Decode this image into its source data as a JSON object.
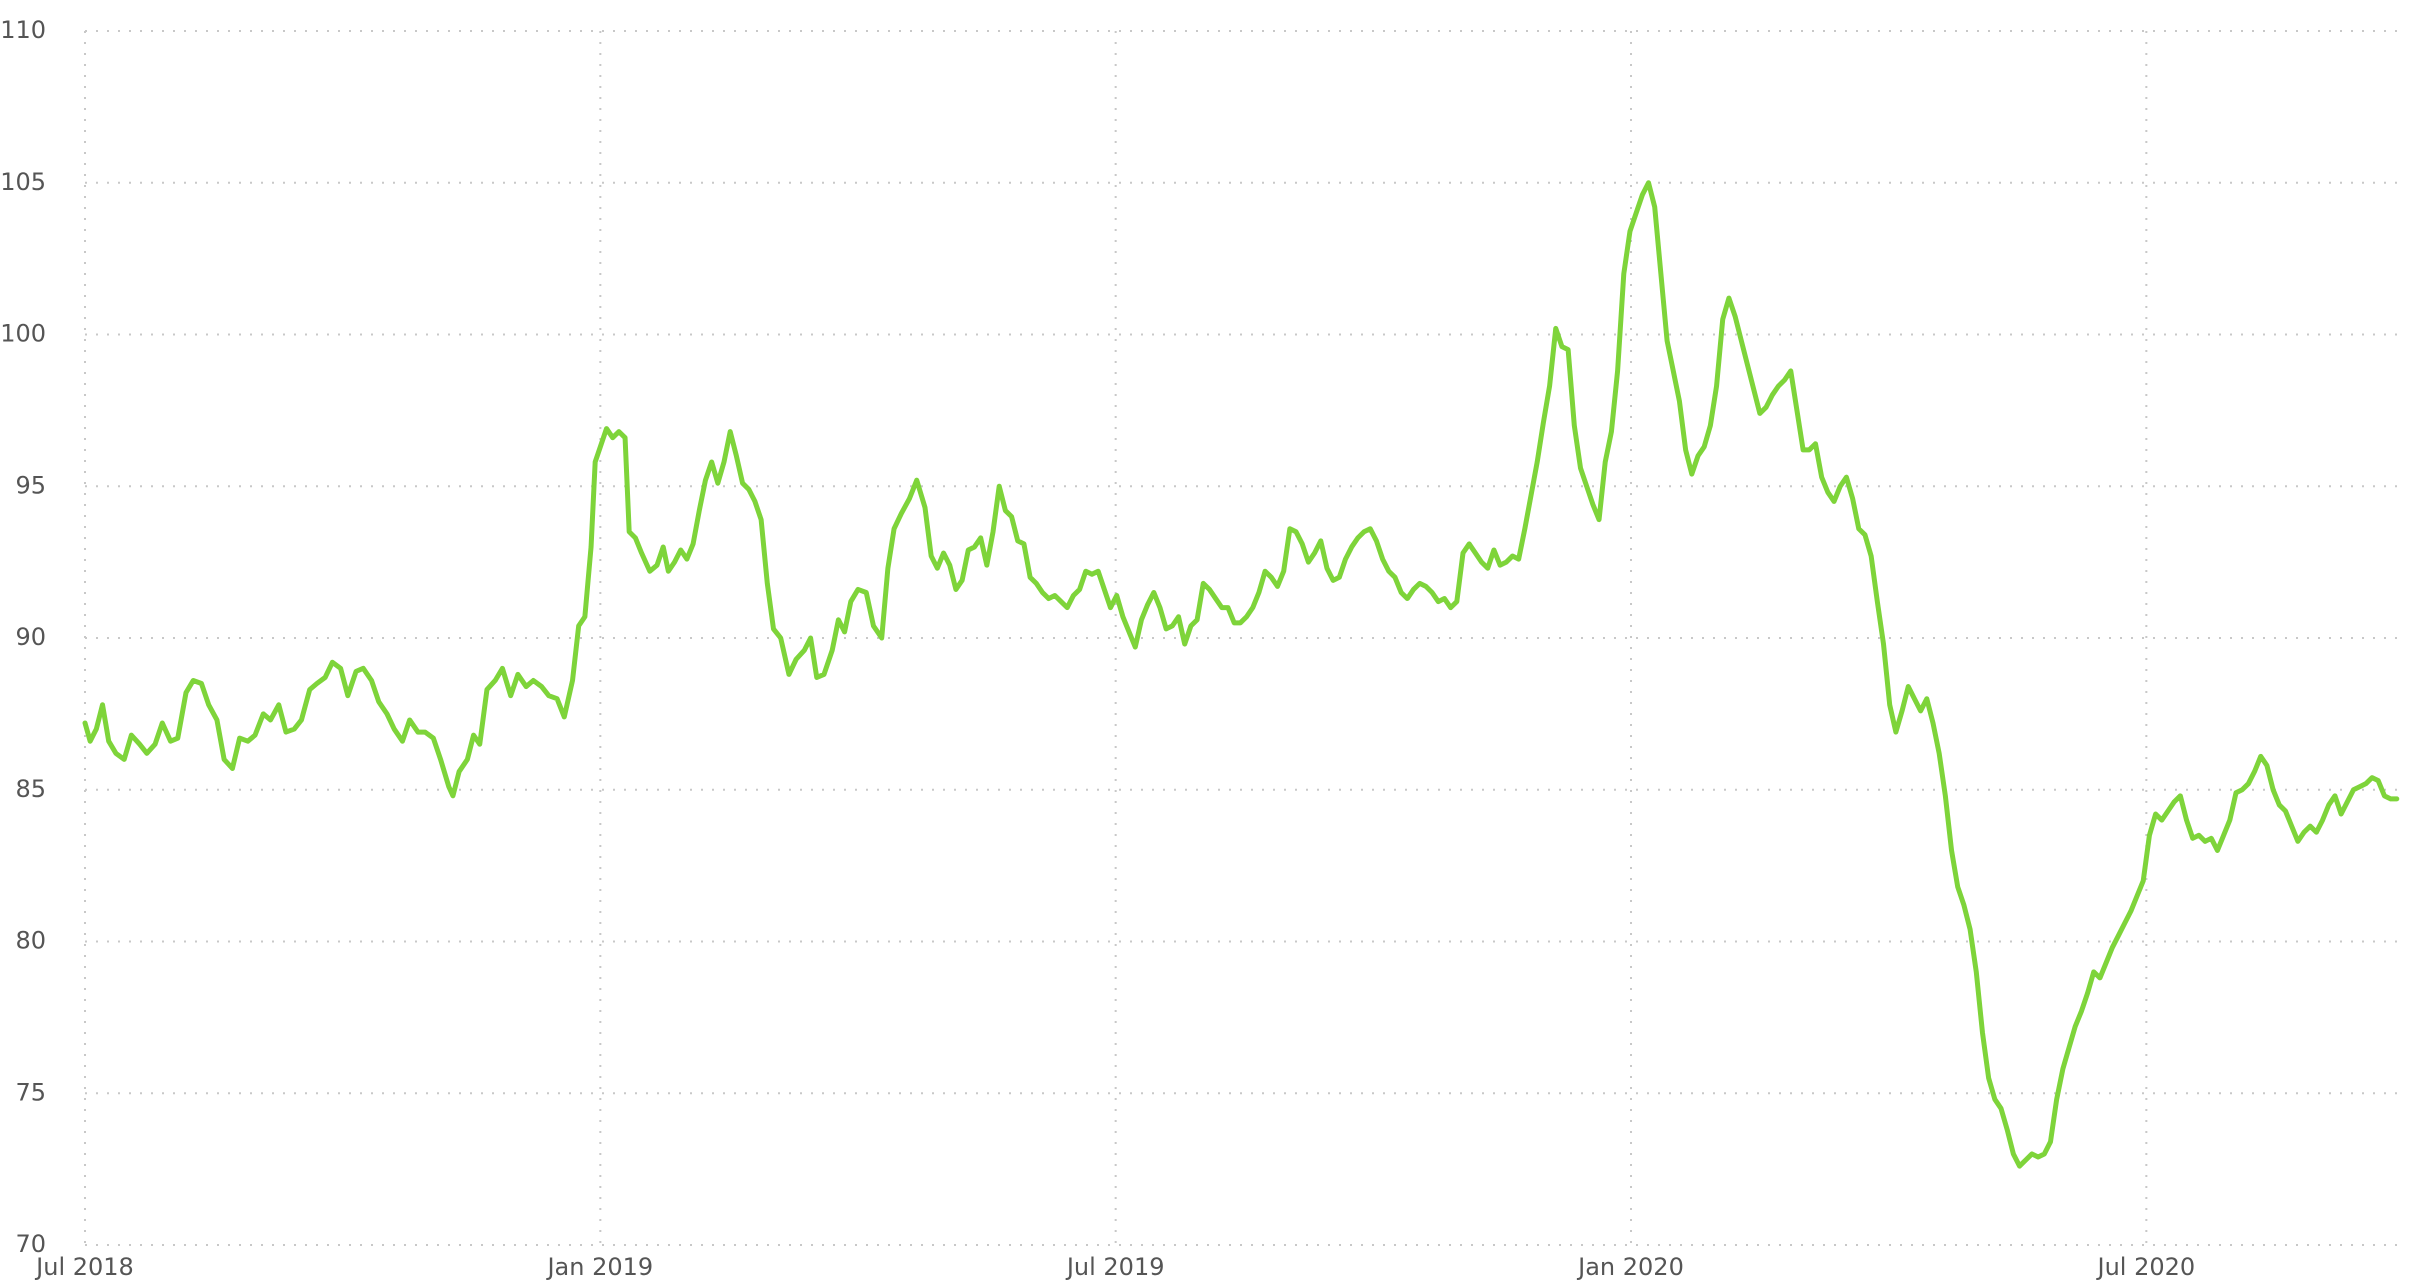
{
  "chart_data": {
    "type": "line",
    "x": [
      2018.5,
      2018.505,
      2018.511,
      2018.517,
      2018.523,
      2018.53,
      2018.538,
      2018.545,
      2018.553,
      2018.56,
      2018.568,
      2018.575,
      2018.583,
      2018.59,
      2018.598,
      2018.605,
      2018.613,
      2018.62,
      2018.628,
      2018.635,
      2018.643,
      2018.65,
      2018.658,
      2018.665,
      2018.673,
      2018.68,
      2018.688,
      2018.695,
      2018.703,
      2018.71,
      2018.718,
      2018.725,
      2018.733,
      2018.74,
      2018.748,
      2018.755,
      2018.763,
      2018.77,
      2018.778,
      2018.785,
      2018.793,
      2018.8,
      2018.808,
      2018.815,
      2018.823,
      2018.83,
      2018.838,
      2018.845,
      2018.853,
      2018.857,
      2018.863,
      2018.871,
      2018.877,
      2018.883,
      2018.89,
      2018.898,
      2018.905,
      2018.913,
      2018.92,
      2018.928,
      2018.935,
      2018.943,
      2018.95,
      2018.958,
      2018.965,
      2018.973,
      2018.979,
      2018.985,
      2018.991,
      2018.995,
      2019.0,
      2019.006,
      2019.012,
      2019.018,
      2019.024,
      2019.028,
      2019.034,
      2019.04,
      2019.048,
      2019.055,
      2019.061,
      2019.066,
      2019.072,
      2019.078,
      2019.084,
      2019.09,
      2019.096,
      2019.102,
      2019.108,
      2019.114,
      2019.12,
      2019.126,
      2019.132,
      2019.138,
      2019.144,
      2019.15,
      2019.156,
      2019.162,
      2019.168,
      2019.175,
      2019.183,
      2019.19,
      2019.198,
      2019.204,
      2019.21,
      2019.217,
      2019.225,
      2019.231,
      2019.237,
      2019.243,
      2019.25,
      2019.258,
      2019.265,
      2019.273,
      2019.279,
      2019.285,
      2019.292,
      2019.3,
      2019.307,
      2019.315,
      2019.321,
      2019.327,
      2019.333,
      2019.339,
      2019.345,
      2019.351,
      2019.357,
      2019.363,
      2019.369,
      2019.375,
      2019.381,
      2019.387,
      2019.393,
      2019.399,
      2019.405,
      2019.411,
      2019.417,
      2019.423,
      2019.429,
      2019.435,
      2019.441,
      2019.447,
      2019.453,
      2019.459,
      2019.465,
      2019.471,
      2019.477,
      2019.483,
      2019.489,
      2019.495,
      2019.501,
      2019.507,
      2019.513,
      2019.519,
      2019.525,
      2019.531,
      2019.537,
      2019.543,
      2019.549,
      2019.555,
      2019.561,
      2019.567,
      2019.573,
      2019.579,
      2019.585,
      2019.591,
      2019.597,
      2019.603,
      2019.609,
      2019.615,
      2019.621,
      2019.627,
      2019.633,
      2019.639,
      2019.645,
      2019.651,
      2019.657,
      2019.663,
      2019.669,
      2019.675,
      2019.681,
      2019.687,
      2019.693,
      2019.699,
      2019.705,
      2019.711,
      2019.717,
      2019.723,
      2019.729,
      2019.735,
      2019.741,
      2019.747,
      2019.753,
      2019.759,
      2019.765,
      2019.771,
      2019.777,
      2019.783,
      2019.789,
      2019.795,
      2019.801,
      2019.807,
      2019.813,
      2019.819,
      2019.825,
      2019.831,
      2019.837,
      2019.843,
      2019.849,
      2019.855,
      2019.861,
      2019.867,
      2019.873,
      2019.879,
      2019.885,
      2019.891,
      2019.897,
      2019.903,
      2019.909,
      2019.915,
      2019.921,
      2019.927,
      2019.933,
      2019.939,
      2019.945,
      2019.951,
      2019.957,
      2019.963,
      2019.969,
      2019.975,
      2019.981,
      2019.987,
      2019.993,
      2019.999,
      2020.005,
      2020.011,
      2020.017,
      2020.023,
      2020.029,
      2020.035,
      2020.041,
      2020.047,
      2020.053,
      2020.059,
      2020.065,
      2020.071,
      2020.077,
      2020.083,
      2020.089,
      2020.095,
      2020.101,
      2020.107,
      2020.113,
      2020.119,
      2020.125,
      2020.131,
      2020.137,
      2020.143,
      2020.149,
      2020.155,
      2020.161,
      2020.167,
      2020.173,
      2020.179,
      2020.185,
      2020.191,
      2020.197,
      2020.203,
      2020.209,
      2020.215,
      2020.221,
      2020.227,
      2020.233,
      2020.239,
      2020.245,
      2020.251,
      2020.257,
      2020.263,
      2020.269,
      2020.275,
      2020.281,
      2020.287,
      2020.293,
      2020.299,
      2020.305,
      2020.311,
      2020.317,
      2020.323,
      2020.329,
      2020.335,
      2020.341,
      2020.347,
      2020.353,
      2020.359,
      2020.365,
      2020.371,
      2020.377,
      2020.383,
      2020.389,
      2020.395,
      2020.401,
      2020.407,
      2020.413,
      2020.419,
      2020.425,
      2020.431,
      2020.437,
      2020.443,
      2020.449,
      2020.455,
      2020.461,
      2020.467,
      2020.473,
      2020.479,
      2020.485,
      2020.491,
      2020.497,
      2020.503,
      2020.509,
      2020.515,
      2020.521,
      2020.527,
      2020.533,
      2020.539,
      2020.545,
      2020.551,
      2020.557,
      2020.563,
      2020.569,
      2020.575,
      2020.581,
      2020.587,
      2020.593,
      2020.599,
      2020.605,
      2020.611,
      2020.617,
      2020.623,
      2020.629,
      2020.635,
      2020.641,
      2020.647,
      2020.653,
      2020.659,
      2020.665,
      2020.671,
      2020.677,
      2020.683,
      2020.689,
      2020.695,
      2020.701,
      2020.707,
      2020.713,
      2020.719,
      2020.725,
      2020.731,
      2020.737,
      2020.743
    ],
    "series": [
      {
        "color": "#7ed43a",
        "values": [
          87.2,
          86.6,
          87.0,
          87.8,
          86.6,
          86.2,
          86.0,
          86.8,
          86.5,
          86.2,
          86.5,
          87.2,
          86.6,
          86.7,
          88.2,
          88.6,
          88.5,
          87.8,
          87.3,
          86.0,
          85.7,
          86.7,
          86.6,
          86.8,
          87.5,
          87.3,
          87.8,
          86.9,
          87.0,
          87.3,
          88.3,
          88.5,
          88.7,
          89.2,
          89.0,
          88.1,
          88.9,
          89.0,
          88.6,
          87.9,
          87.5,
          87.0,
          86.6,
          87.3,
          86.9,
          86.9,
          86.7,
          86.0,
          85.1,
          84.8,
          85.6,
          86.0,
          86.8,
          86.5,
          88.3,
          88.6,
          89.0,
          88.1,
          88.8,
          88.4,
          88.6,
          88.4,
          88.1,
          88.0,
          87.4,
          88.6,
          90.4,
          90.7,
          93.0,
          95.8,
          96.3,
          96.9,
          96.6,
          96.8,
          96.6,
          93.5,
          93.3,
          92.8,
          92.2,
          92.4,
          93.0,
          92.2,
          92.5,
          92.9,
          92.6,
          93.1,
          94.2,
          95.2,
          95.8,
          95.1,
          95.8,
          96.8,
          96.0,
          95.1,
          94.9,
          94.5,
          93.9,
          91.8,
          90.3,
          90.0,
          88.8,
          89.3,
          89.6,
          90.0,
          88.7,
          88.8,
          89.6,
          90.6,
          90.2,
          91.2,
          91.6,
          91.5,
          90.4,
          90.0,
          92.3,
          93.6,
          94.1,
          94.6,
          95.2,
          94.3,
          92.7,
          92.3,
          92.8,
          92.4,
          91.6,
          91.9,
          92.9,
          93.0,
          93.3,
          92.4,
          93.5,
          95.0,
          94.2,
          94.0,
          93.2,
          93.1,
          92.0,
          91.8,
          91.5,
          91.3,
          91.4,
          91.2,
          91.0,
          91.4,
          91.6,
          92.2,
          92.1,
          92.2,
          91.6,
          91.0,
          91.4,
          90.7,
          90.2,
          89.7,
          90.6,
          91.1,
          91.5,
          91.0,
          90.3,
          90.4,
          90.7,
          89.8,
          90.4,
          90.6,
          91.8,
          91.6,
          91.3,
          91.0,
          91.0,
          90.5,
          90.5,
          90.7,
          91.0,
          91.5,
          92.2,
          92.0,
          91.7,
          92.2,
          93.6,
          93.5,
          93.1,
          92.5,
          92.8,
          93.2,
          92.3,
          91.9,
          92.0,
          92.6,
          93.0,
          93.3,
          93.5,
          93.6,
          93.2,
          92.6,
          92.2,
          92.0,
          91.5,
          91.3,
          91.6,
          91.8,
          91.7,
          91.5,
          91.2,
          91.3,
          91.0,
          91.2,
          92.8,
          93.1,
          92.8,
          92.5,
          92.3,
          92.9,
          92.4,
          92.5,
          92.7,
          92.6,
          93.6,
          94.7,
          95.8,
          97.1,
          98.3,
          100.2,
          99.6,
          99.5,
          97.0,
          95.6,
          95.0,
          94.4,
          93.9,
          95.8,
          96.8,
          98.8,
          102.0,
          103.4,
          104.0,
          104.6,
          105.0,
          104.2,
          102.0,
          99.8,
          98.8,
          97.8,
          96.2,
          95.4,
          96.0,
          96.3,
          97.0,
          98.3,
          100.5,
          101.2,
          100.6,
          99.8,
          99.0,
          98.2,
          97.4,
          97.6,
          98.0,
          98.3,
          98.5,
          98.8,
          97.5,
          96.2,
          96.2,
          96.4,
          95.3,
          94.8,
          94.5,
          95.0,
          95.3,
          94.6,
          93.6,
          93.4,
          92.7,
          91.2,
          89.8,
          87.8,
          86.9,
          87.6,
          88.4,
          88.0,
          87.6,
          88.0,
          87.2,
          86.2,
          84.8,
          83.0,
          81.8,
          81.2,
          80.4,
          79.0,
          77.0,
          75.5,
          74.8,
          74.5,
          73.8,
          73.0,
          72.6,
          72.8,
          73.0,
          72.9,
          73.0,
          73.4,
          74.8,
          75.8,
          76.5,
          77.2,
          77.7,
          78.3,
          79.0,
          78.8,
          79.3,
          79.8,
          80.2,
          80.6,
          81.0,
          81.5,
          82.0,
          83.5,
          84.2,
          84.0,
          84.3,
          84.6,
          84.8,
          84.0,
          83.4,
          83.5,
          83.3,
          83.4,
          83.0,
          83.5,
          84.0,
          84.9,
          85.0,
          85.2,
          85.6,
          86.1,
          85.8,
          85.0,
          84.5,
          84.3,
          83.8,
          83.3,
          83.6,
          83.8,
          83.6,
          84.0,
          84.5,
          84.8,
          84.2,
          84.6,
          85.0,
          85.1,
          85.2,
          85.4,
          85.3,
          84.8,
          84.7,
          84.7
        ]
      }
    ],
    "xlim": [
      2018.5,
      2020.75
    ],
    "xticks": [
      {
        "value": 2018.5,
        "label": "Jul 2018"
      },
      {
        "value": 2019.0,
        "label": "Jan 2019"
      },
      {
        "value": 2019.5,
        "label": "Jul 2019"
      },
      {
        "value": 2020.0,
        "label": "Jan 2020"
      },
      {
        "value": 2020.5,
        "label": "Jul 2020"
      }
    ],
    "ylim": [
      70,
      110
    ],
    "yticks": [
      70,
      75,
      80,
      85,
      90,
      95,
      100,
      105,
      110
    ],
    "grid": true
  }
}
